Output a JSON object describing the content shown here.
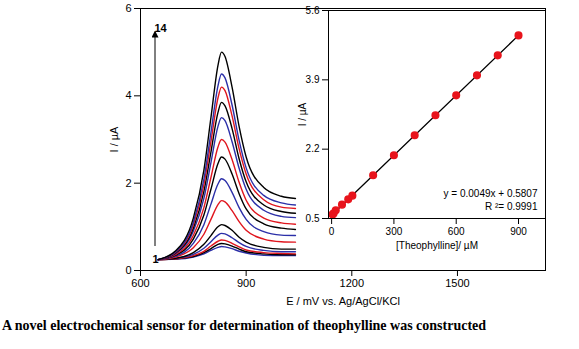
{
  "chart_data": [
    {
      "type": "line",
      "x_label": "E / mV vs. Ag/AgCl/KCl",
      "y_label": "I / µA",
      "x": [
        650,
        700,
        750,
        780,
        800,
        820,
        830,
        840,
        860,
        880,
        900,
        950,
        1000,
        1040
      ],
      "series": [
        {
          "color": "#2b2fa8",
          "values": [
            0.25,
            0.26,
            0.31,
            0.38,
            0.46,
            0.53,
            0.55,
            0.54,
            0.5,
            0.44,
            0.4,
            0.35,
            0.34,
            0.34
          ]
        },
        {
          "color": "#000000",
          "values": [
            0.25,
            0.27,
            0.32,
            0.41,
            0.5,
            0.6,
            0.62,
            0.61,
            0.56,
            0.49,
            0.43,
            0.38,
            0.36,
            0.36
          ]
        },
        {
          "color": "#e0161e",
          "values": [
            0.25,
            0.27,
            0.34,
            0.44,
            0.56,
            0.67,
            0.7,
            0.69,
            0.62,
            0.54,
            0.47,
            0.41,
            0.39,
            0.38
          ]
        },
        {
          "color": "#2b2fa8",
          "values": [
            0.25,
            0.28,
            0.37,
            0.51,
            0.66,
            0.81,
            0.85,
            0.84,
            0.75,
            0.64,
            0.55,
            0.46,
            0.43,
            0.43
          ]
        },
        {
          "color": "#000000",
          "values": [
            0.25,
            0.28,
            0.41,
            0.6,
            0.8,
            1.0,
            1.05,
            1.03,
            0.92,
            0.76,
            0.65,
            0.53,
            0.49,
            0.49
          ]
        },
        {
          "color": "#e0161e",
          "values": [
            0.25,
            0.31,
            0.52,
            0.83,
            1.17,
            1.51,
            1.6,
            1.57,
            1.37,
            1.12,
            0.92,
            0.72,
            0.66,
            0.65
          ]
        },
        {
          "color": "#2b2fa8",
          "values": [
            0.25,
            0.33,
            0.62,
            1.05,
            1.52,
            1.98,
            2.1,
            2.06,
            1.79,
            1.44,
            1.17,
            0.89,
            0.81,
            0.8
          ]
        },
        {
          "color": "#000000",
          "values": [
            0.25,
            0.35,
            0.72,
            1.27,
            1.86,
            2.45,
            2.6,
            2.55,
            2.21,
            1.76,
            1.41,
            1.07,
            0.97,
            0.94
          ]
        },
        {
          "color": "#e0161e",
          "values": [
            0.25,
            0.37,
            0.8,
            1.44,
            2.13,
            2.83,
            3.0,
            2.94,
            2.54,
            2.02,
            1.61,
            1.2,
            1.09,
            1.06
          ]
        },
        {
          "color": "#2b2fa8",
          "values": [
            0.25,
            0.39,
            0.9,
            1.65,
            2.47,
            3.3,
            3.5,
            3.43,
            2.95,
            2.34,
            1.86,
            1.38,
            1.24,
            1.21
          ]
        },
        {
          "color": "#000000",
          "values": [
            0.25,
            0.4,
            0.97,
            1.81,
            2.71,
            3.62,
            3.85,
            3.77,
            3.25,
            2.56,
            2.03,
            1.5,
            1.35,
            1.31
          ]
        },
        {
          "color": "#e0161e",
          "values": [
            0.25,
            0.42,
            1.04,
            1.96,
            2.95,
            3.95,
            4.2,
            4.12,
            3.54,
            2.79,
            2.21,
            1.62,
            1.45,
            1.42
          ]
        },
        {
          "color": "#2b2fa8",
          "values": [
            0.25,
            0.43,
            1.1,
            2.09,
            3.16,
            4.23,
            4.5,
            4.41,
            3.79,
            2.98,
            2.35,
            1.72,
            1.55,
            1.5
          ]
        },
        {
          "color": "#000000",
          "values": [
            0.25,
            0.45,
            1.2,
            2.3,
            3.5,
            4.7,
            5.0,
            4.9,
            4.2,
            3.3,
            2.6,
            1.9,
            1.7,
            1.65
          ]
        }
      ],
      "xlim": [
        600,
        1750
      ],
      "xticks": [
        600,
        900,
        1200,
        1500
      ],
      "ylim": [
        0,
        6
      ],
      "yticks": [
        0,
        2,
        4,
        6
      ],
      "grid": false,
      "annotations": [
        "1",
        "14"
      ]
    },
    {
      "type": "scatter",
      "x_label": "[Theophylline]/ µM",
      "y_label": "I / µA",
      "series": [
        {
          "type": "line",
          "color": "#000000",
          "line_style": "solid",
          "x": [
            0,
            900
          ],
          "values": [
            0.58,
            4.99
          ]
        },
        {
          "type": "scatter",
          "color": "#e8141c",
          "marker": "circle",
          "x": [
            5,
            10,
            20,
            50,
            80,
            100,
            200,
            300,
            400,
            500,
            600,
            700,
            800,
            900
          ],
          "values": [
            0.6,
            0.63,
            0.7,
            0.84,
            0.97,
            1.06,
            1.56,
            2.05,
            2.54,
            3.03,
            3.52,
            4.01,
            4.5,
            4.99
          ]
        }
      ],
      "xlim": [
        -15,
        1030
      ],
      "xticks": [
        0,
        300,
        600,
        900
      ],
      "ylim": [
        0.5,
        5.6
      ],
      "yticks": [
        0.5,
        2.2,
        3.9,
        5.6
      ],
      "grid": false,
      "annotations": [
        "y = 0.0049x + 0.5807",
        "R ²= 0.9991"
      ]
    }
  ],
  "caption": "A novel electrochemical sensor for determination of theophylline was constructed"
}
